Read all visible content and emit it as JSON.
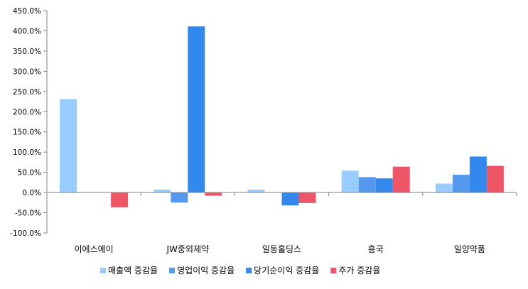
{
  "chart_data": {
    "type": "bar",
    "title": "",
    "xlabel": "",
    "ylabel": "",
    "categories": [
      "이에스에이",
      "JW중외제약",
      "일동홀딩스",
      "흥국",
      "일양약품"
    ],
    "series": [
      {
        "name": "매출액 증감율",
        "color": "#99ccff",
        "values": [
          231,
          7,
          7,
          54,
          22
        ]
      },
      {
        "name": "영업이익 증감율",
        "color": "#5599ee",
        "values": [
          0,
          -25,
          0,
          38,
          44
        ]
      },
      {
        "name": "당기순이익 증감율",
        "color": "#3388ee",
        "values": [
          0,
          411,
          -32,
          35,
          89
        ]
      },
      {
        "name": "주가 증감율",
        "color": "#ee5566",
        "values": [
          -37,
          -8,
          -26,
          64,
          66
        ]
      }
    ],
    "ylim": [
      -100,
      450
    ],
    "ytick_step": 50,
    "ytick_labels": [
      "-100.0%",
      "-50.0%",
      "0.0%",
      "50.0%",
      "100.0%",
      "150.0%",
      "200.0%",
      "250.0%",
      "300.0%",
      "350.0%",
      "400.0%",
      "450.0%"
    ],
    "grid": false,
    "legend_position": "bottom"
  }
}
